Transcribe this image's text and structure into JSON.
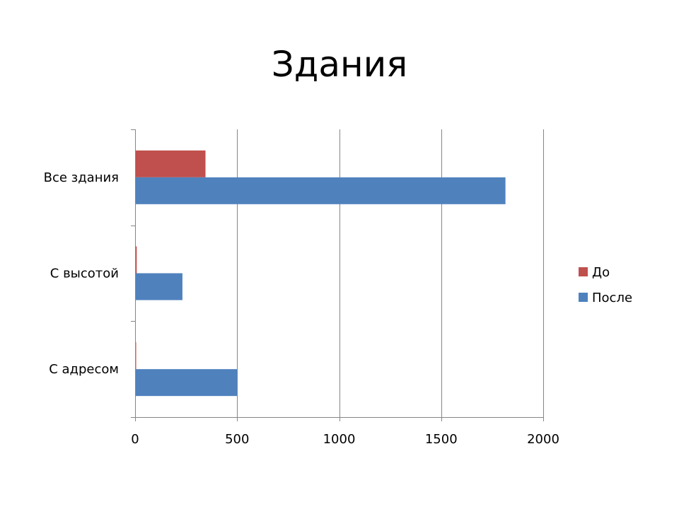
{
  "chart_data": {
    "type": "bar",
    "orientation": "horizontal",
    "title": "Здания",
    "xlabel": "",
    "ylabel": "",
    "categories": [
      "Все здания",
      "С высотой",
      "С адресом"
    ],
    "series": [
      {
        "name": "До",
        "color": "#c0504d",
        "values": [
          345,
          8,
          5
        ]
      },
      {
        "name": "После",
        "color": "#4f81bd",
        "values": [
          1815,
          232,
          500
        ]
      }
    ],
    "xlim": [
      0,
      2000
    ],
    "xticks": [
      0,
      500,
      1000,
      1500,
      2000
    ],
    "grid": true,
    "legend_position": "right"
  }
}
